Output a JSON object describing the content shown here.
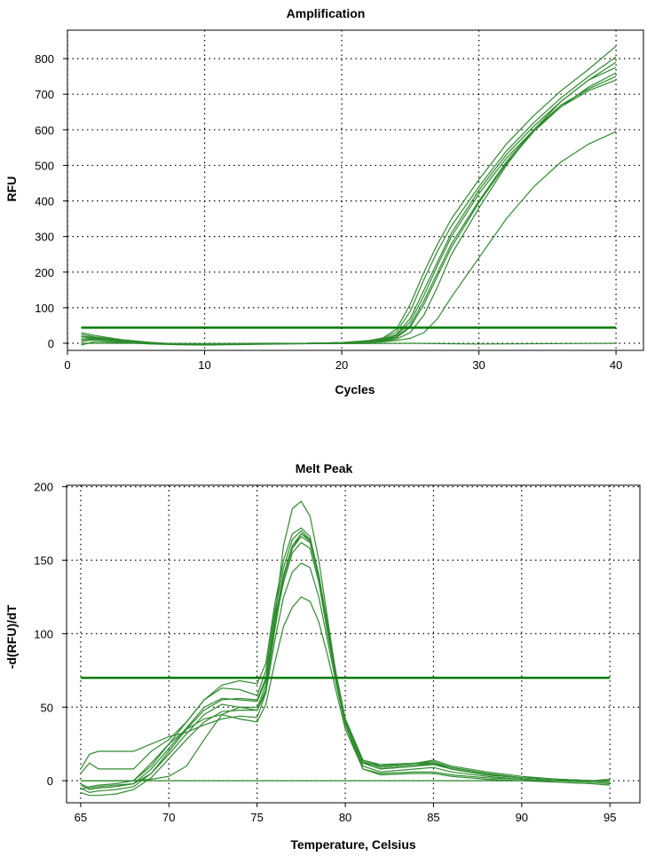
{
  "colors": {
    "series": "#2e8b2e",
    "threshold": "#007a00",
    "grid": "#000000",
    "axis": "#000000"
  },
  "chart_data": [
    {
      "type": "line",
      "title": "Amplification",
      "xlabel": "Cycles",
      "ylabel": "RFU",
      "xlim": [
        0,
        42
      ],
      "ylim": [
        -20,
        880
      ],
      "xticks": [
        0,
        10,
        20,
        30,
        40
      ],
      "yticks": [
        0,
        100,
        200,
        300,
        400,
        500,
        600,
        700,
        800
      ],
      "grid": true,
      "legend": "none",
      "threshold": 44,
      "series": [
        {
          "x": [
            1,
            2,
            4,
            6,
            8,
            10,
            12,
            14,
            16,
            18,
            20,
            22,
            23,
            24,
            25,
            26,
            27,
            28,
            30,
            32,
            34,
            36,
            38,
            40
          ],
          "y": [
            25,
            18,
            8,
            2,
            -2,
            -3,
            -3,
            -2,
            -1,
            0,
            2,
            8,
            15,
            40,
            110,
            200,
            280,
            350,
            460,
            560,
            640,
            710,
            770,
            835
          ]
        },
        {
          "x": [
            1,
            2,
            4,
            6,
            8,
            10,
            12,
            14,
            16,
            18,
            20,
            22,
            23,
            24,
            25,
            26,
            27,
            28,
            30,
            32,
            34,
            36,
            38,
            40
          ],
          "y": [
            18,
            15,
            6,
            0,
            -3,
            -4,
            -3,
            -2,
            -1,
            0,
            2,
            7,
            12,
            32,
            90,
            180,
            260,
            330,
            440,
            540,
            620,
            690,
            750,
            805
          ]
        },
        {
          "x": [
            1,
            2,
            4,
            6,
            8,
            10,
            12,
            14,
            16,
            18,
            20,
            22,
            23,
            24,
            25,
            26,
            27,
            28,
            30,
            32,
            34,
            36,
            38,
            40
          ],
          "y": [
            10,
            12,
            5,
            0,
            -3,
            -4,
            -3,
            -2,
            -1,
            0,
            1,
            5,
            10,
            25,
            70,
            150,
            230,
            310,
            430,
            530,
            610,
            680,
            740,
            790
          ]
        },
        {
          "x": [
            1,
            2,
            4,
            6,
            8,
            10,
            12,
            14,
            16,
            18,
            20,
            22,
            23,
            24,
            25,
            26,
            27,
            28,
            30,
            32,
            34,
            36,
            38,
            40
          ],
          "y": [
            5,
            10,
            4,
            -1,
            -3,
            -4,
            -3,
            -2,
            -1,
            0,
            1,
            5,
            9,
            22,
            60,
            135,
            220,
            300,
            420,
            520,
            600,
            665,
            720,
            760
          ]
        },
        {
          "x": [
            1,
            2,
            4,
            6,
            8,
            10,
            12,
            14,
            16,
            18,
            20,
            22,
            23,
            24,
            25,
            26,
            27,
            28,
            30,
            32,
            34,
            36,
            38,
            40
          ],
          "y": [
            30,
            22,
            10,
            3,
            -2,
            -3,
            -3,
            -2,
            -1,
            0,
            1,
            4,
            8,
            18,
            50,
            120,
            200,
            280,
            400,
            510,
            600,
            670,
            715,
            750
          ]
        },
        {
          "x": [
            1,
            2,
            4,
            6,
            8,
            10,
            12,
            14,
            16,
            18,
            20,
            22,
            23,
            24,
            25,
            26,
            27,
            28,
            30,
            32,
            34,
            36,
            38,
            40
          ],
          "y": [
            20,
            16,
            7,
            1,
            -2,
            -3,
            -3,
            -2,
            -1,
            0,
            1,
            4,
            7,
            16,
            45,
            110,
            190,
            270,
            395,
            505,
            595,
            665,
            710,
            740
          ]
        },
        {
          "x": [
            1,
            2,
            4,
            6,
            8,
            10,
            12,
            14,
            16,
            18,
            20,
            22,
            23,
            24,
            25,
            26,
            27,
            28,
            30,
            32,
            34,
            36,
            38,
            40
          ],
          "y": [
            12,
            14,
            6,
            0,
            -3,
            -4,
            -3,
            -2,
            -1,
            0,
            1,
            3,
            6,
            12,
            30,
            80,
            160,
            250,
            380,
            500,
            600,
            680,
            740,
            775
          ]
        },
        {
          "x": [
            1,
            2,
            4,
            6,
            8,
            10,
            12,
            14,
            16,
            18,
            20,
            22,
            23,
            24,
            25,
            26,
            27,
            28,
            30,
            32,
            34,
            36,
            38,
            40
          ],
          "y": [
            -5,
            5,
            2,
            -2,
            -4,
            -5,
            -4,
            -3,
            -2,
            -1,
            0,
            2,
            4,
            8,
            14,
            30,
            70,
            130,
            240,
            350,
            440,
            510,
            560,
            595
          ]
        },
        {
          "x": [
            1,
            5,
            10,
            15,
            20,
            25,
            30,
            35,
            40
          ],
          "y": [
            0,
            0,
            -1,
            0,
            -1,
            0,
            -2,
            -1,
            0
          ]
        }
      ]
    },
    {
      "type": "line",
      "title": "Melt Peak",
      "xlabel": "Temperature, Celsius",
      "ylabel": "-d(RFU)/dT",
      "xlim": [
        64.2,
        96.7
      ],
      "ylim": [
        -15,
        201
      ],
      "xticks": [
        65,
        70,
        75,
        80,
        85,
        90,
        95
      ],
      "yticks": [
        0,
        50,
        100,
        150,
        200
      ],
      "grid": true,
      "legend": "none",
      "threshold": 70,
      "series": [
        {
          "x": [
            65,
            65.5,
            66,
            67,
            68,
            69,
            70,
            71,
            72,
            73,
            74,
            75,
            75.5,
            76,
            76.5,
            77,
            77.5,
            78,
            78.5,
            79,
            79.5,
            80,
            81,
            82,
            84,
            85,
            86,
            88,
            90,
            92,
            94,
            95
          ],
          "y": [
            8,
            18,
            20,
            20,
            20,
            25,
            30,
            33,
            38,
            42,
            44,
            43,
            60,
            110,
            160,
            185,
            190,
            180,
            150,
            110,
            70,
            40,
            12,
            10,
            12,
            14,
            10,
            6,
            3,
            1,
            0,
            0
          ]
        },
        {
          "x": [
            65,
            65.5,
            66,
            67,
            68,
            69,
            70,
            71,
            72,
            73,
            74,
            75,
            75.5,
            76,
            76.5,
            77,
            77.5,
            78,
            78.5,
            79,
            79.5,
            80,
            81,
            82,
            84,
            85,
            86,
            88,
            90,
            92,
            94,
            95
          ],
          "y": [
            5,
            12,
            8,
            8,
            8,
            20,
            28,
            40,
            55,
            65,
            68,
            66,
            80,
            120,
            150,
            168,
            172,
            166,
            140,
            105,
            70,
            42,
            14,
            11,
            12,
            12,
            9,
            5,
            2,
            1,
            0,
            0
          ]
        },
        {
          "x": [
            65,
            65.5,
            66,
            67,
            68,
            69,
            70,
            71,
            72,
            73,
            74,
            75,
            75.5,
            76,
            76.5,
            77,
            77.5,
            78,
            78.5,
            79,
            79.5,
            80,
            81,
            82,
            84,
            85,
            86,
            88,
            90,
            92,
            94,
            95
          ],
          "y": [
            0,
            0,
            0,
            0,
            0,
            10,
            25,
            40,
            55,
            63,
            62,
            58,
            75,
            115,
            145,
            164,
            170,
            164,
            138,
            105,
            70,
            42,
            14,
            10,
            12,
            13,
            9,
            5,
            2,
            1,
            0,
            1
          ]
        },
        {
          "x": [
            65,
            65.5,
            66,
            67,
            68,
            69,
            70,
            71,
            72,
            73,
            74,
            75,
            75.5,
            76,
            76.5,
            77,
            77.5,
            78,
            78.5,
            79,
            79.5,
            80,
            81,
            82,
            84,
            85,
            86,
            88,
            90,
            92,
            94,
            95
          ],
          "y": [
            -2,
            -5,
            -4,
            -3,
            -2,
            5,
            20,
            35,
            48,
            55,
            56,
            55,
            70,
            110,
            140,
            160,
            168,
            163,
            138,
            104,
            70,
            40,
            12,
            8,
            10,
            11,
            8,
            4,
            2,
            1,
            0,
            0
          ]
        },
        {
          "x": [
            65,
            65.5,
            66,
            67,
            68,
            69,
            70,
            71,
            72,
            73,
            74,
            75,
            75.5,
            76,
            76.5,
            77,
            77.5,
            78,
            78.5,
            79,
            79.5,
            80,
            81,
            82,
            84,
            85,
            86,
            88,
            90,
            92,
            94,
            95
          ],
          "y": [
            -5,
            -8,
            -7,
            -6,
            -4,
            5,
            18,
            32,
            45,
            52,
            50,
            50,
            65,
            105,
            135,
            155,
            162,
            158,
            135,
            100,
            68,
            38,
            10,
            6,
            8,
            9,
            6,
            3,
            1,
            0,
            -1,
            -1
          ]
        },
        {
          "x": [
            65,
            65.5,
            66,
            67,
            68,
            69,
            70,
            71,
            72,
            73,
            74,
            75,
            75.5,
            76,
            76.5,
            77,
            77.5,
            78,
            78.5,
            79,
            79.5,
            80,
            81,
            82,
            84,
            85,
            86,
            88,
            90,
            92,
            94,
            95
          ],
          "y": [
            -8,
            -10,
            -10,
            -9,
            -6,
            2,
            15,
            28,
            40,
            47,
            48,
            48,
            60,
            95,
            125,
            142,
            148,
            145,
            125,
            95,
            65,
            38,
            8,
            5,
            6,
            6,
            4,
            2,
            1,
            0,
            -1,
            -2
          ]
        },
        {
          "x": [
            65,
            65.5,
            66,
            67,
            68,
            69,
            70,
            71,
            72,
            73,
            74,
            75,
            75.5,
            76,
            76.5,
            77,
            77.5,
            78,
            78.5,
            79,
            79.5,
            80,
            81,
            82,
            84,
            85,
            86,
            88,
            90,
            92,
            94,
            95
          ],
          "y": [
            -3,
            -6,
            -5,
            -4,
            -2,
            8,
            22,
            36,
            50,
            56,
            55,
            54,
            68,
            108,
            140,
            158,
            166,
            162,
            138,
            104,
            70,
            40,
            12,
            8,
            10,
            12,
            8,
            4,
            2,
            1,
            0,
            0
          ]
        },
        {
          "x": [
            65,
            65.5,
            66,
            67,
            68,
            69,
            70,
            71,
            72,
            73,
            74,
            75,
            75.5,
            76,
            76.5,
            77,
            77.5,
            78,
            78.5,
            79,
            79.5,
            80,
            81,
            82,
            84,
            85,
            86,
            88,
            90,
            92,
            94,
            95
          ],
          "y": [
            -6,
            -4,
            -3,
            -2,
            0,
            12,
            25,
            35,
            42,
            45,
            42,
            40,
            52,
            80,
            105,
            118,
            125,
            122,
            108,
            85,
            60,
            35,
            8,
            4,
            5,
            5,
            3,
            1,
            0,
            -1,
            -2,
            -3
          ]
        },
        {
          "x": [
            65,
            65.5,
            66,
            67,
            68,
            69,
            70,
            71,
            72,
            73,
            74,
            75,
            75.5,
            76,
            76.5,
            77,
            77.5,
            78,
            78.5,
            79,
            79.5,
            80,
            81,
            82,
            84,
            85,
            86,
            88,
            90,
            92,
            94,
            95
          ],
          "y": [
            0,
            0,
            0,
            0,
            0,
            1,
            3,
            10,
            28,
            45,
            50,
            48,
            62,
            102,
            138,
            158,
            168,
            164,
            140,
            106,
            72,
            42,
            13,
            9,
            11,
            12,
            8,
            4,
            2,
            1,
            0,
            0
          ]
        },
        {
          "x": [
            65,
            70,
            75,
            80,
            85,
            90,
            95
          ],
          "y": [
            0,
            0,
            0,
            0,
            0,
            0,
            0
          ]
        }
      ]
    }
  ]
}
